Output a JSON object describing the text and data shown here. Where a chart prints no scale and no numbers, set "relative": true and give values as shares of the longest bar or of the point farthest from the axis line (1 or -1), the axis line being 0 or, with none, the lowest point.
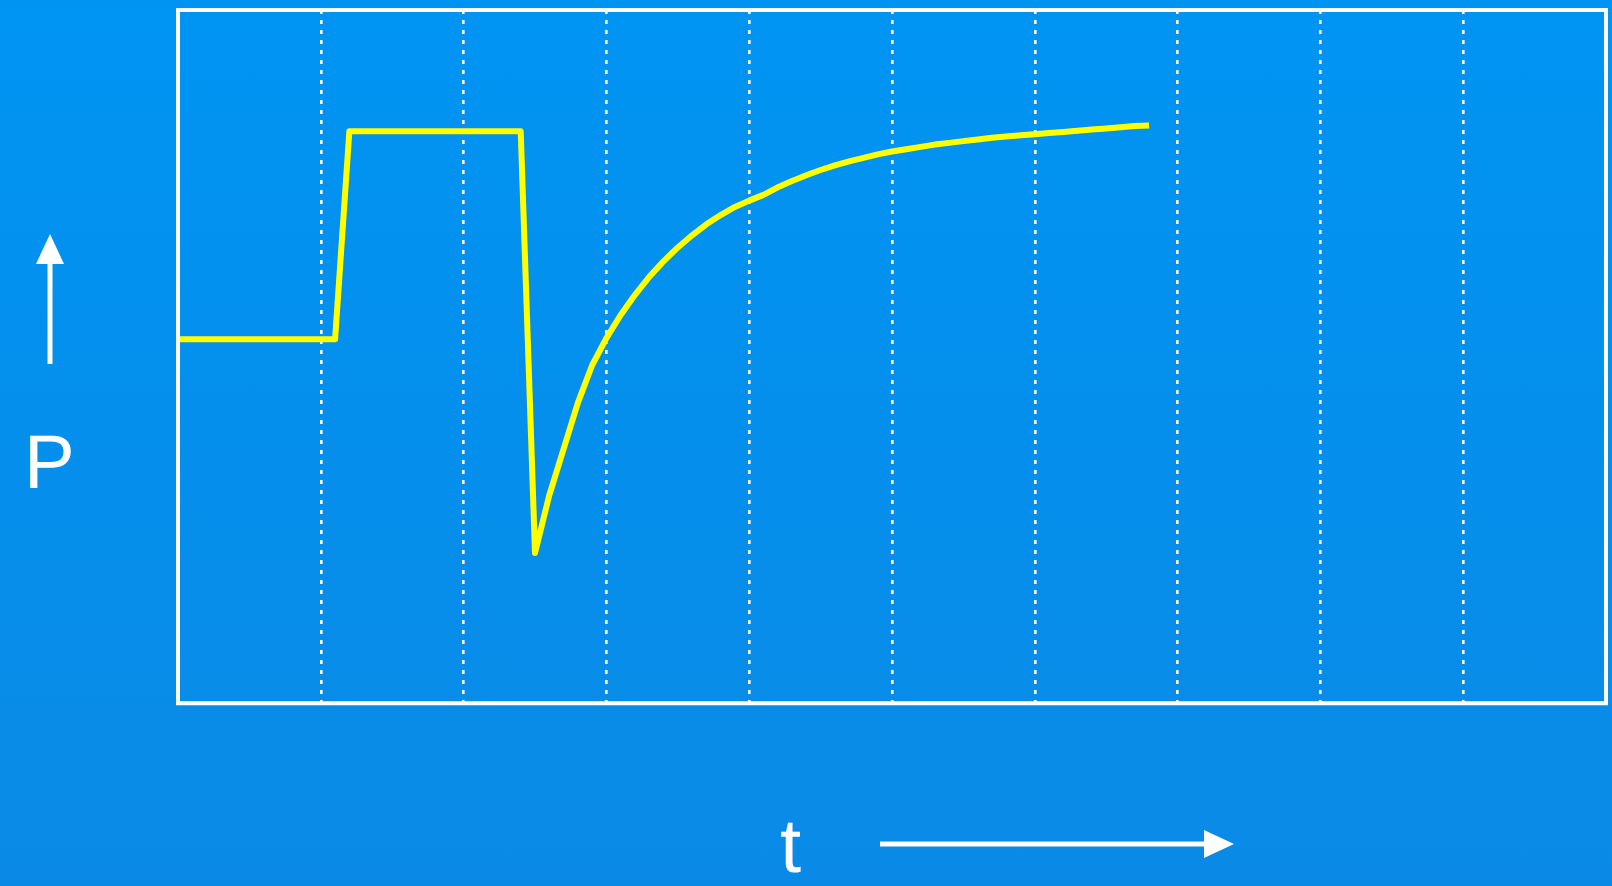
{
  "chart_data": {
    "type": "line",
    "xlabel": "t",
    "ylabel": "P",
    "relative": true,
    "grid": "x",
    "legend": false,
    "marker": "none",
    "line_style": "solid",
    "categories": [
      null,
      null,
      null,
      null,
      null,
      null,
      null,
      null,
      null,
      null,
      null,
      null,
      null,
      null,
      null,
      null,
      null,
      null,
      null,
      null,
      null,
      null,
      null,
      null,
      null,
      null,
      null,
      null,
      null,
      null,
      null,
      null,
      null,
      null,
      null,
      null,
      null,
      null,
      null,
      null,
      null,
      null,
      null,
      null,
      null,
      null,
      null,
      null,
      null,
      null,
      null,
      null,
      null,
      null,
      null,
      null,
      null,
      null,
      null,
      null,
      null,
      null,
      null,
      null,
      null,
      null,
      null,
      null,
      null,
      null,
      null,
      null,
      null,
      null,
      null,
      null,
      null,
      null,
      null,
      null,
      null,
      null,
      null,
      null,
      null,
      null,
      null,
      null,
      null,
      null,
      null,
      null,
      null,
      null,
      null,
      null,
      null,
      null,
      null,
      null,
      null
    ],
    "series": [
      {
        "color": "#ffff00",
        "values": [
          0.63,
          0.63,
          0.63,
          0.63,
          0.63,
          0.63,
          0.63,
          0.63,
          0.63,
          0.63,
          0.63,
          0.63,
          0.99,
          0.99,
          0.99,
          0.99,
          0.99,
          0.99,
          0.99,
          0.99,
          0.99,
          0.99,
          0.99,
          0.99,
          0.99,
          0.26,
          0.36,
          0.44,
          0.52,
          0.585,
          0.632,
          0.672,
          0.707,
          0.738,
          0.765,
          0.789,
          0.81,
          0.829,
          0.845,
          0.859,
          0.87,
          0.88,
          0.893,
          0.904,
          0.914,
          0.923,
          0.931,
          0.938,
          0.944,
          0.95,
          0.955,
          0.959,
          0.963,
          0.967,
          0.97,
          0.973,
          0.976,
          0.979,
          0.981,
          0.983,
          0.985,
          0.987,
          0.989,
          0.991,
          0.993,
          0.995,
          0.997,
          0.999,
          1,
          null,
          null,
          null,
          null,
          null,
          null,
          null,
          null,
          null,
          null,
          null,
          null,
          null,
          null,
          null,
          null,
          null,
          null,
          null,
          null,
          null,
          null,
          null,
          null,
          null,
          null,
          null,
          null,
          null,
          null,
          null,
          null
        ]
      }
    ]
  }
}
